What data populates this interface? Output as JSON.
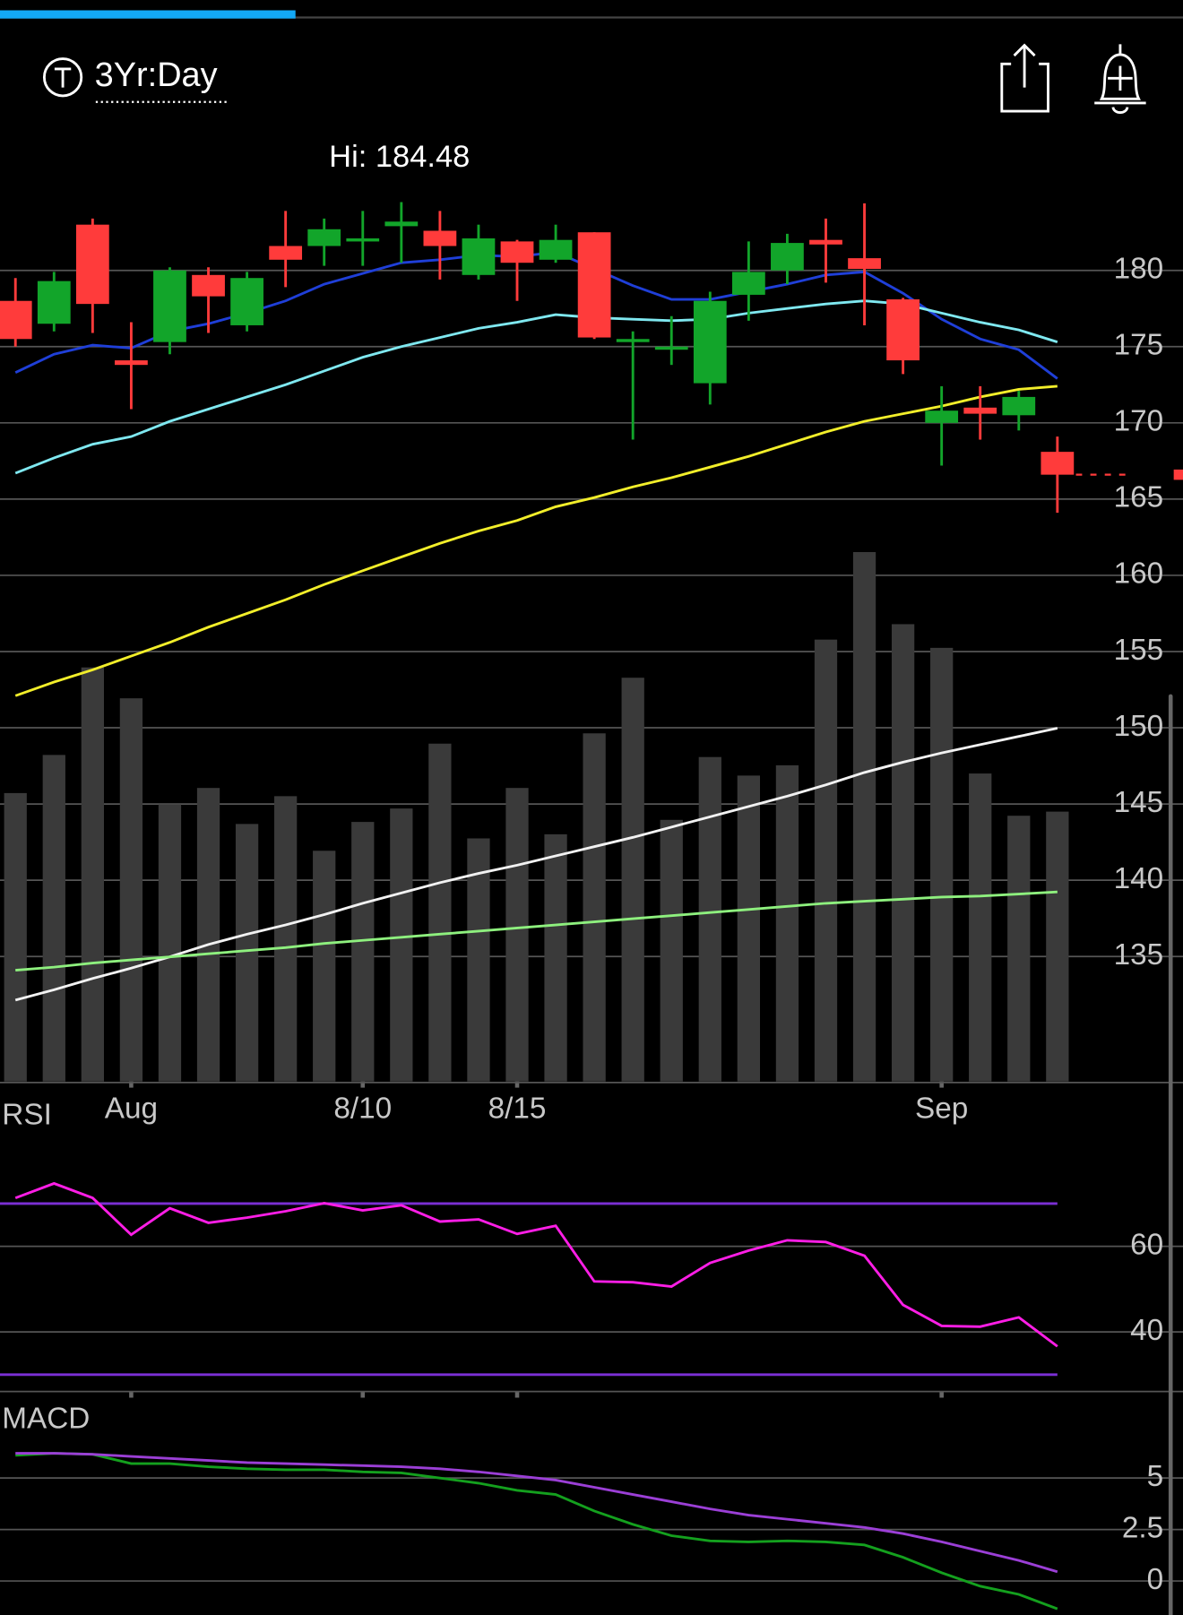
{
  "header": {
    "timeframe": "3Yr:Day",
    "high_label": "Hi: 184.48"
  },
  "chart_data": [
    {
      "type": "candlestick",
      "categories": [
        null,
        null,
        null,
        "Aug",
        null,
        null,
        null,
        null,
        null,
        "8/10",
        null,
        null,
        null,
        "8/15",
        null,
        null,
        null,
        null,
        null,
        null,
        null,
        null,
        null,
        null,
        "Sep",
        null,
        null,
        null
      ],
      "open": [
        178.0,
        176.5,
        183.0,
        174.1,
        175.3,
        179.7,
        176.4,
        181.6,
        181.6,
        181.9,
        182.9,
        182.6,
        179.7,
        181.9,
        180.7,
        182.5,
        175.3,
        174.9,
        172.6,
        178.4,
        180.0,
        182.0,
        180.8,
        178.1,
        170.0,
        171.0,
        170.5,
        168.1
      ],
      "high": [
        179.5,
        179.9,
        183.4,
        176.6,
        180.2,
        180.2,
        179.9,
        183.9,
        183.4,
        183.9,
        184.48,
        183.9,
        183.0,
        182.0,
        183.0,
        182.5,
        176.0,
        177.0,
        178.6,
        181.9,
        182.4,
        183.4,
        184.4,
        178.2,
        172.4,
        172.4,
        172.1,
        169.1
      ],
      "low": [
        175.0,
        176.0,
        175.9,
        170.9,
        174.5,
        175.9,
        176.0,
        178.9,
        180.3,
        180.3,
        180.5,
        179.4,
        179.4,
        178.0,
        180.5,
        175.5,
        168.9,
        173.8,
        171.2,
        176.7,
        179.1,
        179.2,
        176.4,
        173.2,
        167.2,
        168.9,
        169.5,
        164.1
      ],
      "close": [
        175.5,
        179.3,
        177.8,
        173.8,
        180.0,
        178.3,
        179.5,
        180.7,
        182.7,
        182.1,
        183.2,
        181.6,
        182.1,
        180.5,
        182.0,
        175.6,
        175.5,
        175.0,
        178.0,
        179.9,
        181.8,
        181.7,
        180.1,
        174.1,
        170.8,
        170.6,
        171.7,
        166.6
      ],
      "up_color": "#12a52a",
      "down_color": "#ff3b3b",
      "lines": [
        {
          "color": "#1f3fd8",
          "values": [
            173.3,
            174.5,
            175.1,
            174.9,
            176.0,
            176.5,
            177.2,
            178.0,
            179.1,
            179.8,
            180.5,
            180.7,
            181.0,
            180.9,
            181.2,
            180.1,
            179.0,
            178.1,
            178.1,
            178.6,
            179.1,
            179.7,
            179.9,
            178.5,
            176.8,
            175.5,
            174.8,
            172.9
          ]
        },
        {
          "color": "#7fe8f0",
          "values": [
            166.7,
            167.7,
            168.6,
            169.1,
            170.1,
            170.9,
            171.7,
            172.5,
            173.4,
            174.3,
            175.0,
            175.6,
            176.2,
            176.6,
            177.1,
            176.9,
            176.8,
            176.7,
            176.8,
            177.2,
            177.5,
            177.8,
            178.0,
            177.8,
            177.2,
            176.6,
            176.1,
            175.3
          ]
        },
        {
          "color": "#f2ee2a",
          "values": [
            152.1,
            153.0,
            153.8,
            154.7,
            155.6,
            156.6,
            157.5,
            158.4,
            159.4,
            160.3,
            161.2,
            162.1,
            162.9,
            163.6,
            164.5,
            165.1,
            165.8,
            166.4,
            167.1,
            167.8,
            168.6,
            169.4,
            170.1,
            170.6,
            171.1,
            171.7,
            172.2,
            172.4
          ]
        }
      ],
      "volume": {
        "color": "#3a3a3a",
        "axis": "y2",
        "values": [
          280,
          317,
          402,
          372,
          269,
          285,
          250,
          277,
          224,
          252,
          265,
          328,
          236,
          285,
          240,
          338,
          392,
          254,
          315,
          297,
          307,
          429,
          514,
          444,
          421,
          299,
          258,
          262
        ]
      },
      "volume_lines": [
        {
          "color": "#f2f2f2",
          "axis": "y2",
          "values": [
            79,
            89,
            100,
            110,
            121,
            133,
            143,
            152,
            162,
            173,
            183,
            193,
            202,
            210,
            219,
            228,
            237,
            247,
            257,
            267,
            277,
            288,
            300,
            310,
            319,
            327,
            335,
            343
          ]
        },
        {
          "color": "#8ef07e",
          "axis": "y2",
          "values": [
            108,
            111,
            115,
            118,
            121,
            124,
            127,
            130,
            134,
            137,
            140,
            143,
            146,
            149,
            152,
            155,
            158,
            161,
            164,
            167,
            170,
            173,
            175,
            177,
            179,
            180,
            182,
            184
          ]
        }
      ],
      "ylim": [
        126.8,
        184.9
      ],
      "yticks": [
        180,
        175,
        170,
        165,
        160,
        155,
        150,
        145,
        140,
        135
      ],
      "y2lim": [
        0,
        860
      ],
      "grid": true
    },
    {
      "type": "line",
      "title": "RSI",
      "series": [
        {
          "color": "#ff1ee6",
          "values": [
            71.3,
            74.7,
            71.3,
            62.7,
            68.9,
            65.5,
            66.7,
            68.2,
            70.1,
            68.4,
            69.6,
            65.8,
            66.3,
            62.9,
            64.8,
            51.8,
            51.6,
            50.6,
            56.1,
            59.0,
            61.4,
            61.0,
            57.8,
            46.3,
            41.4,
            41.2,
            43.4,
            36.6
          ]
        }
      ],
      "levels": [
        70,
        30
      ],
      "level_color": "#7b2fd4",
      "ylim": [
        26.3,
        86.5
      ],
      "yticks": [
        60,
        40
      ],
      "grid": true
    },
    {
      "type": "line",
      "title": "MACD",
      "series": [
        {
          "color": "#14a01e",
          "values": [
            6.1,
            6.2,
            6.15,
            5.7,
            5.7,
            5.55,
            5.45,
            5.4,
            5.4,
            5.3,
            5.25,
            5.0,
            4.75,
            4.4,
            4.2,
            3.4,
            2.75,
            2.2,
            1.95,
            1.9,
            1.95,
            1.9,
            1.75,
            1.15,
            0.4,
            -0.25,
            -0.65,
            -1.35
          ]
        },
        {
          "color": "#9b3fd6",
          "values": [
            6.2,
            6.2,
            6.15,
            6.05,
            5.95,
            5.85,
            5.75,
            5.7,
            5.65,
            5.6,
            5.55,
            5.45,
            5.3,
            5.1,
            4.9,
            4.55,
            4.2,
            3.85,
            3.5,
            3.2,
            3.0,
            2.8,
            2.6,
            2.3,
            1.9,
            1.45,
            1.0,
            0.45
          ]
        }
      ],
      "ylim": [
        -1.65,
        7.0
      ],
      "yticks": [
        5,
        2.5,
        0
      ],
      "grid": true
    }
  ]
}
